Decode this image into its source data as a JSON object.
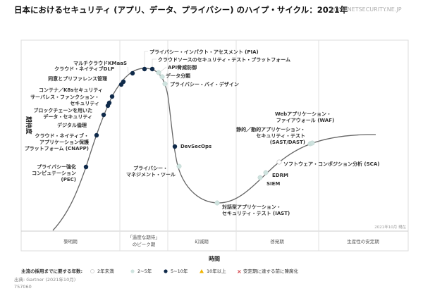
{
  "title": "日本におけるセキュリティ (アプリ、データ、プライバシー) のハイプ・サイクル：2021年",
  "watermark": "SCAN.NETSECURITY.NE.JP",
  "y_axis_label": "期待度",
  "x_axis_label": "時間",
  "as_of": "2021年10月 現在",
  "phases": [
    "黎明期",
    "「過度な期待」",
    "のピーク期",
    "幻滅期",
    "啓発期",
    "生産性の安定期"
  ],
  "colors": {
    "lt2": "#ffffff",
    "y2to5": "#cfe3df",
    "y5to10": "#0f2a4a",
    "over10": "#f0b400",
    "obsolete": "#d0343c",
    "curve": "#666666"
  },
  "technologies": {
    "kmaas": {
      "lines": [
        "マルチクラウドKMaaS"
      ],
      "years": "5~10年"
    },
    "dlp": {
      "lines": [
        "クラウド・ネイティブDLP"
      ],
      "years": "5~10年"
    },
    "consent": {
      "lines": [
        "同意とプリファレンス管理"
      ],
      "years": "5~10年"
    },
    "container": {
      "lines": [
        "コンテナ／K8sセキュリティ"
      ],
      "years": "5~10年"
    },
    "serverless": {
      "lines": [
        "サーバレス・ファンクション・",
        "セキュリティ"
      ],
      "years": "5~10年"
    },
    "blockchain": {
      "lines": [
        "ブロックチェーンを用いた",
        "データ・セキュリティ"
      ],
      "years": "5~10年"
    },
    "ethics": {
      "lines": [
        "デジタル倫理"
      ],
      "years": "5~10年"
    },
    "cnapp": {
      "lines": [
        "クラウド・ネイティブ・",
        "アプリケーション保護",
        "プラットフォーム (CNAPP)"
      ],
      "years": "5~10年"
    },
    "pec": {
      "lines": [
        "プライバシー強化",
        "コンピュテーション",
        "(PEC)"
      ],
      "years": "5~10年"
    },
    "pia": {
      "lines": [
        "プライバシー・インパクト・アセスメント (PIA)"
      ],
      "years": "5~10年"
    },
    "crowd": {
      "lines": [
        "クラウドソースのセキュリティ・テスト・プラットフォーム"
      ],
      "years": "5~10年"
    },
    "api": {
      "lines": [
        "API脅威防御"
      ],
      "years": "2~5年"
    },
    "dataclass": {
      "lines": [
        "データ分類"
      ],
      "years": "2~5年"
    },
    "pbd": {
      "lines": [
        "プライバシー・バイ・デザイン"
      ],
      "years": "2~5年"
    },
    "devsecops": {
      "lines": [
        "DevSecOps"
      ],
      "years": "5~10年"
    },
    "privmgmt": {
      "lines": [
        "プライバシー・",
        "マネジメント・ツール"
      ],
      "years": "2~5年"
    },
    "iast": {
      "lines": [
        "対話型アプリケーション・",
        "セキュリティ・テスト (IAST)"
      ],
      "years": "2~5年"
    },
    "siem": {
      "lines": [
        "SIEM"
      ],
      "years": "2~5年"
    },
    "edrm": {
      "lines": [
        "EDRM"
      ],
      "years": "2~5年"
    },
    "sca": {
      "lines": [
        "ソフトウェア・コンポジション分析 (SCA)"
      ],
      "years": "2年未満"
    },
    "sast": {
      "lines": [
        "静的／動的アプリケーション・",
        "セキュリティ・テスト",
        "(SAST/DAST)"
      ],
      "years": "2~5年"
    },
    "waf": {
      "lines": [
        "Webアプリケーション・",
        "ファイアウォール (WAF)"
      ],
      "years": "2~5年"
    }
  },
  "legend": {
    "title": "主流の採用までに要する年数:",
    "items": [
      "2年未満",
      "2~5年",
      "5~10年",
      "10年以上",
      "安定期に達する前に陳腐化"
    ]
  },
  "source": "出典: Gartner (2021年10月)",
  "doc_id": "757060"
}
